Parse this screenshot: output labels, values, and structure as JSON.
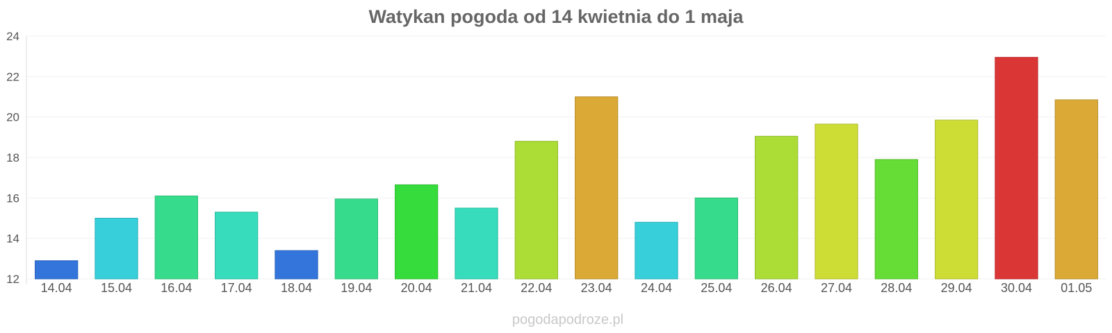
{
  "chart_data": {
    "type": "bar",
    "title": "Watykan pogoda od 14 kwietnia do 1 maja",
    "xlabel": "",
    "ylabel": "",
    "ylim": [
      12,
      24
    ],
    "yticks": [
      12,
      14,
      16,
      18,
      20,
      22,
      24
    ],
    "grid": true,
    "categories": [
      "14.04",
      "15.04",
      "16.04",
      "17.04",
      "18.04",
      "19.04",
      "20.04",
      "21.04",
      "22.04",
      "23.04",
      "24.04",
      "25.04",
      "26.04",
      "27.04",
      "28.04",
      "29.04",
      "30.04",
      "01.05"
    ],
    "values": [
      12.9,
      15.0,
      16.1,
      15.3,
      13.4,
      15.95,
      16.65,
      15.5,
      18.8,
      21.0,
      14.8,
      16.0,
      19.05,
      19.65,
      17.9,
      19.85,
      22.95,
      20.85
    ],
    "colors": [
      "#3375db",
      "#36cfda",
      "#36dc8c",
      "#36dcbb",
      "#3375db",
      "#36dc8c",
      "#36dc3b",
      "#36dcbb",
      "#acdc36",
      "#dba936",
      "#36cfda",
      "#36dc8c",
      "#acdc36",
      "#cedc36",
      "#66dc36",
      "#cedc36",
      "#db3636",
      "#dba936"
    ]
  },
  "watermark": "pogodapodroze.pl"
}
